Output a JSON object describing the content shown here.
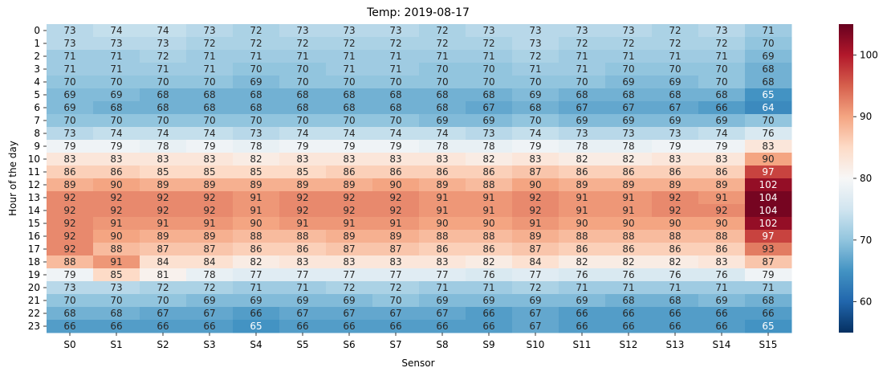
{
  "chart_data": {
    "type": "heatmap",
    "title": "Temp: 2019-08-17",
    "xlabel": "Sensor",
    "ylabel": "Hour of the day",
    "x_categories": [
      "S0",
      "S1",
      "S2",
      "S3",
      "S4",
      "S5",
      "S6",
      "S7",
      "S8",
      "S9",
      "S10",
      "S11",
      "S12",
      "S13",
      "S14",
      "S15"
    ],
    "y_categories": [
      "0",
      "1",
      "2",
      "3",
      "4",
      "5",
      "6",
      "7",
      "8",
      "9",
      "10",
      "11",
      "12",
      "13",
      "14",
      "15",
      "16",
      "17",
      "18",
      "19",
      "20",
      "21",
      "22",
      "23"
    ],
    "values": [
      [
        73,
        74,
        74,
        73,
        72,
        73,
        73,
        73,
        72,
        73,
        73,
        73,
        73,
        72,
        73,
        71
      ],
      [
        73,
        73,
        73,
        72,
        72,
        72,
        72,
        72,
        72,
        72,
        73,
        72,
        72,
        72,
        72,
        70
      ],
      [
        71,
        71,
        72,
        71,
        71,
        71,
        71,
        71,
        71,
        71,
        72,
        71,
        71,
        71,
        71,
        69
      ],
      [
        71,
        71,
        71,
        71,
        70,
        70,
        71,
        71,
        70,
        70,
        71,
        71,
        70,
        70,
        70,
        68
      ],
      [
        70,
        70,
        70,
        70,
        69,
        70,
        70,
        70,
        70,
        70,
        70,
        70,
        69,
        69,
        70,
        68
      ],
      [
        69,
        69,
        68,
        68,
        68,
        68,
        68,
        68,
        68,
        68,
        69,
        68,
        68,
        68,
        68,
        65
      ],
      [
        69,
        68,
        68,
        68,
        68,
        68,
        68,
        68,
        68,
        67,
        68,
        67,
        67,
        67,
        66,
        64
      ],
      [
        70,
        70,
        70,
        70,
        70,
        70,
        70,
        70,
        69,
        69,
        70,
        69,
        69,
        69,
        69,
        70
      ],
      [
        73,
        74,
        74,
        74,
        73,
        74,
        74,
        74,
        74,
        73,
        74,
        73,
        73,
        73,
        74,
        76
      ],
      [
        79,
        79,
        78,
        79,
        78,
        79,
        79,
        79,
        78,
        78,
        79,
        78,
        78,
        79,
        79,
        83
      ],
      [
        83,
        83,
        83,
        83,
        82,
        83,
        83,
        83,
        83,
        82,
        83,
        82,
        82,
        83,
        83,
        90
      ],
      [
        86,
        86,
        85,
        85,
        85,
        85,
        86,
        86,
        86,
        86,
        87,
        86,
        86,
        86,
        86,
        97
      ],
      [
        89,
        90,
        89,
        89,
        89,
        89,
        89,
        90,
        89,
        88,
        90,
        89,
        89,
        89,
        89,
        102
      ],
      [
        92,
        92,
        92,
        92,
        91,
        92,
        92,
        92,
        91,
        91,
        92,
        91,
        91,
        92,
        91,
        104
      ],
      [
        92,
        92,
        92,
        92,
        91,
        92,
        92,
        92,
        91,
        91,
        92,
        91,
        91,
        92,
        92,
        104
      ],
      [
        92,
        91,
        91,
        91,
        90,
        91,
        91,
        91,
        90,
        90,
        91,
        90,
        90,
        90,
        90,
        102
      ],
      [
        92,
        90,
        89,
        89,
        88,
        88,
        89,
        89,
        88,
        88,
        89,
        88,
        88,
        88,
        88,
        97
      ],
      [
        92,
        88,
        87,
        87,
        86,
        86,
        87,
        87,
        86,
        86,
        87,
        86,
        86,
        86,
        86,
        93
      ],
      [
        88,
        91,
        84,
        84,
        82,
        83,
        83,
        83,
        83,
        82,
        84,
        82,
        82,
        82,
        83,
        87
      ],
      [
        79,
        85,
        81,
        78,
        77,
        77,
        77,
        77,
        77,
        76,
        77,
        76,
        76,
        76,
        76,
        79
      ],
      [
        73,
        73,
        72,
        72,
        71,
        71,
        72,
        72,
        71,
        71,
        72,
        71,
        71,
        71,
        71,
        71
      ],
      [
        70,
        70,
        70,
        69,
        69,
        69,
        69,
        70,
        69,
        69,
        69,
        69,
        68,
        68,
        69,
        68
      ],
      [
        68,
        68,
        67,
        67,
        66,
        67,
        67,
        67,
        67,
        66,
        67,
        66,
        66,
        66,
        66,
        66
      ],
      [
        66,
        66,
        66,
        66,
        65,
        66,
        66,
        66,
        66,
        66,
        67,
        66,
        66,
        66,
        66,
        65
      ]
    ],
    "colormap": "RdBu_r",
    "vmin": 55,
    "vmax": 105,
    "colorbar_ticks": [
      60,
      70,
      80,
      90,
      100
    ]
  }
}
